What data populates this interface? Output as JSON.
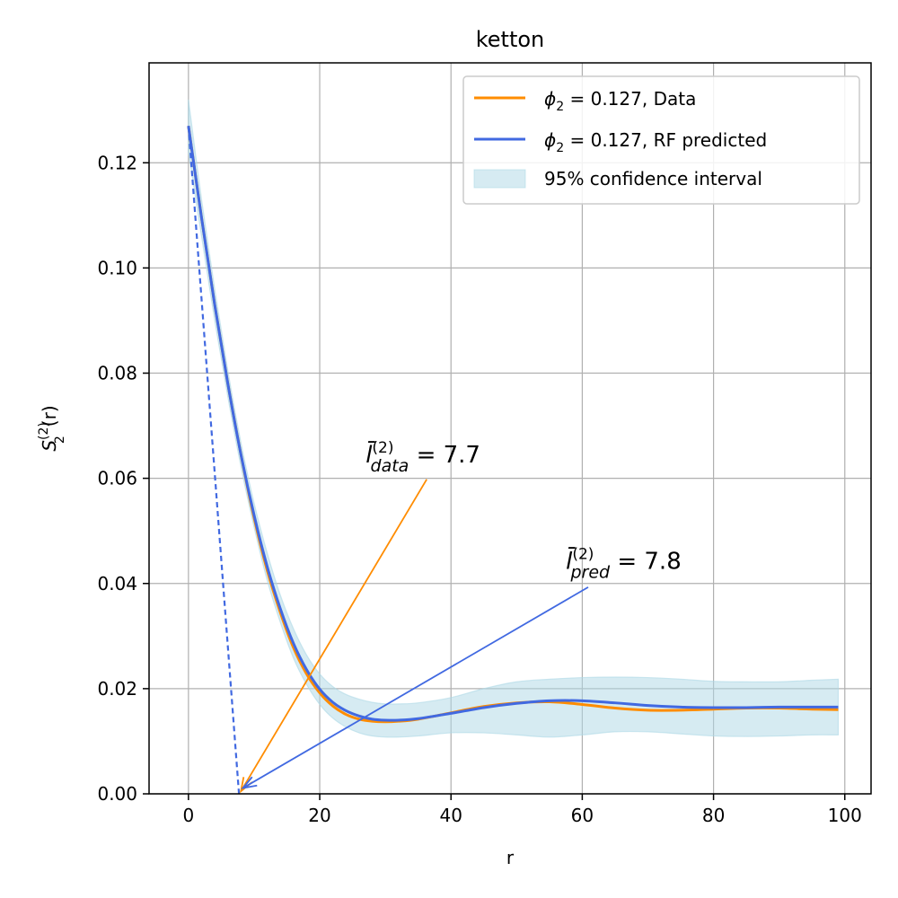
{
  "chart_data": {
    "type": "line",
    "title": "ketton",
    "xlabel": "r",
    "ylabel_main": "S",
    "ylabel_sub": "2",
    "ylabel_sup": "(2)",
    "ylabel_tail": "(r)",
    "xlim": [
      -6,
      104
    ],
    "ylim": [
      0,
      0.139
    ],
    "xticks": [
      0,
      20,
      40,
      60,
      80,
      100
    ],
    "yticks": [
      0.0,
      0.02,
      0.04,
      0.06,
      0.08,
      0.1,
      0.12
    ],
    "xtick_labels": [
      "0",
      "20",
      "40",
      "60",
      "80",
      "100"
    ],
    "ytick_labels": [
      "0.00",
      "0.02",
      "0.04",
      "0.06",
      "0.08",
      "0.10",
      "0.12"
    ],
    "grid": true,
    "legend_position": "top-right",
    "series": [
      {
        "name": "ϕ₂ = 0.127, Data",
        "legend_phi": "ϕ",
        "legend_phi_sub": "2",
        "legend_rest": " = 0.127, Data",
        "color": "#ff8c00",
        "x": [
          0,
          2,
          4,
          6,
          8,
          10,
          12,
          14,
          16,
          18,
          20,
          22,
          24,
          26,
          28,
          30,
          32,
          35,
          40,
          45,
          50,
          55,
          60,
          65,
          70,
          75,
          80,
          85,
          90,
          95,
          99
        ],
        "y": [
          0.127,
          0.1095,
          0.093,
          0.078,
          0.0645,
          0.0525,
          0.0425,
          0.0345,
          0.0278,
          0.0228,
          0.0192,
          0.0167,
          0.0151,
          0.0142,
          0.0138,
          0.0137,
          0.0138,
          0.0142,
          0.0154,
          0.0166,
          0.0173,
          0.0175,
          0.017,
          0.0163,
          0.0159,
          0.0159,
          0.0161,
          0.0163,
          0.0163,
          0.0161,
          0.016
        ]
      },
      {
        "name": "ϕ₂ = 0.127, RF predicted",
        "legend_phi": "ϕ",
        "legend_phi_sub": "2",
        "legend_rest": " = 0.127, RF predicted",
        "color": "#4169e1",
        "x": [
          0,
          2,
          4,
          6,
          8,
          10,
          12,
          14,
          16,
          18,
          20,
          22,
          24,
          26,
          28,
          30,
          32,
          35,
          40,
          45,
          50,
          55,
          60,
          65,
          70,
          75,
          80,
          85,
          90,
          95,
          99
        ],
        "y": [
          0.127,
          0.1095,
          0.093,
          0.078,
          0.0645,
          0.053,
          0.0432,
          0.0352,
          0.0286,
          0.0236,
          0.0199,
          0.0174,
          0.0158,
          0.0148,
          0.0142,
          0.014,
          0.014,
          0.0143,
          0.0153,
          0.0164,
          0.0172,
          0.0177,
          0.0177,
          0.0173,
          0.0168,
          0.0165,
          0.0164,
          0.0164,
          0.0165,
          0.0165,
          0.0165
        ]
      }
    ],
    "band": {
      "name": "95% confidence interval",
      "fill": "#add8e6",
      "x": [
        0,
        2,
        4,
        6,
        8,
        10,
        12,
        14,
        16,
        18,
        20,
        22,
        24,
        26,
        28,
        30,
        32,
        35,
        40,
        45,
        50,
        55,
        60,
        65,
        70,
        75,
        80,
        85,
        90,
        95,
        99
      ],
      "upper": [
        0.132,
        0.113,
        0.096,
        0.0805,
        0.0668,
        0.0553,
        0.0458,
        0.0378,
        0.0314,
        0.0264,
        0.0228,
        0.0204,
        0.0189,
        0.018,
        0.0174,
        0.0171,
        0.0171,
        0.0173,
        0.0183,
        0.02,
        0.0213,
        0.0218,
        0.0221,
        0.0222,
        0.0221,
        0.0218,
        0.0214,
        0.0213,
        0.0213,
        0.0216,
        0.0218
      ],
      "lower": [
        0.122,
        0.106,
        0.09,
        0.0755,
        0.0622,
        0.0507,
        0.0406,
        0.0326,
        0.0258,
        0.0208,
        0.017,
        0.0144,
        0.0127,
        0.0116,
        0.011,
        0.0108,
        0.0108,
        0.011,
        0.0116,
        0.0116,
        0.0112,
        0.0108,
        0.0112,
        0.0118,
        0.0118,
        0.0114,
        0.011,
        0.0109,
        0.011,
        0.0112,
        0.0112
      ]
    },
    "tangent": {
      "x": [
        0,
        7.7
      ],
      "y": [
        0.127,
        0
      ],
      "color": "#4169e1"
    },
    "annotations": [
      {
        "id": "data",
        "text_base": "l̄",
        "text_sup": "(2)",
        "text_sub": "data",
        "text_value": " = 7.7",
        "text_pos": [
          27,
          0.063
        ],
        "arrow_from": [
          36.3,
          0.0598
        ],
        "arrow_to": [
          8.0,
          0.0005
        ],
        "color": "#ff8c00"
      },
      {
        "id": "pred",
        "text_base": "l̄",
        "text_sup": "(2)",
        "text_sub": "pred",
        "text_value": " = 7.8",
        "text_pos": [
          57.5,
          0.0428
        ],
        "arrow_from": [
          60.9,
          0.0393
        ],
        "arrow_to": [
          8.3,
          0.0011
        ],
        "color": "#4169e1"
      }
    ]
  }
}
